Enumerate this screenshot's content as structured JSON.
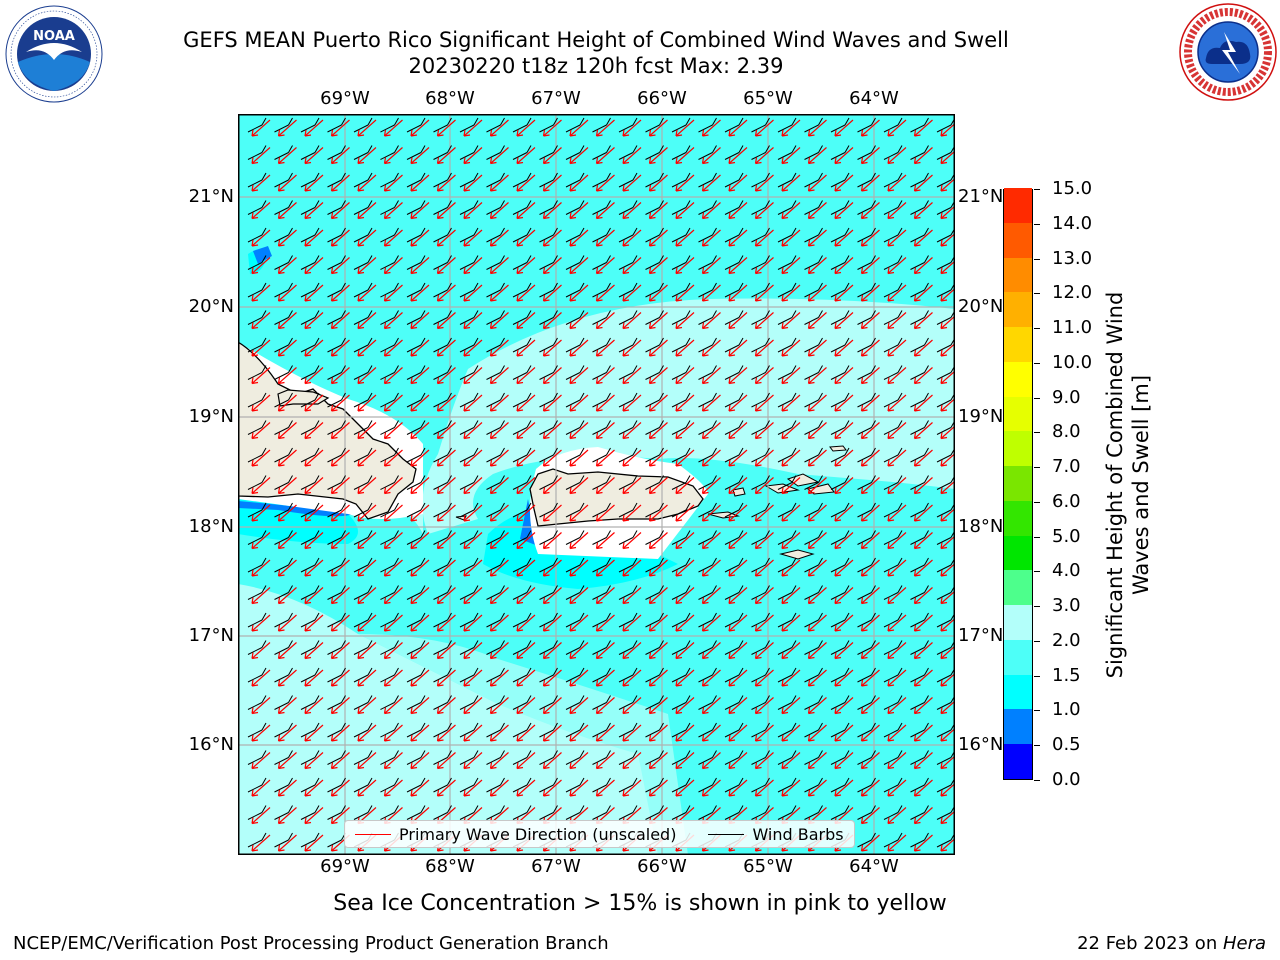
{
  "title_line1": "GEFS MEAN Puerto Rico Significant Height of Combined Wind Waves and Swell",
  "title_line2": "20230220 t18z 120h fcst   Max: 2.39",
  "logos": {
    "left": {
      "icon": "noaa-logo",
      "text": "NOAA",
      "ring_text": "NATIONAL OCEANIC AND ATMOSPHERIC ADMINISTRATION · U.S. DEPARTMENT OF COMMERCE"
    },
    "right": {
      "icon": "nws-logo",
      "ring_text": "NATIONAL WEATHER SERVICE"
    }
  },
  "map": {
    "lon_labels": [
      "69°W",
      "68°W",
      "67°W",
      "66°W",
      "65°W",
      "64°W"
    ],
    "lon_values": [
      -69,
      -68,
      -67,
      -66,
      -65,
      -64
    ],
    "lat_labels": [
      "21°N",
      "20°N",
      "19°N",
      "18°N",
      "17°N",
      "16°N"
    ],
    "lat_values": [
      21,
      20,
      19,
      18,
      17,
      16
    ],
    "lon_range": [
      -70,
      -63.25
    ],
    "lat_range": [
      15.0,
      21.75
    ],
    "colors": {
      "ocean_fill": "#7ffff2",
      "low_wave": "#b3fffa",
      "mid_wave": "#4dfff8",
      "cyan": "#00ffff",
      "blue": "#0080ff",
      "land": "#efede0",
      "coast": "#000000",
      "gridline": "#b0b0b0",
      "wave_arrow": "#ff0000",
      "wind_barb": "#000000"
    }
  },
  "legend": {
    "wave_direction": "Primary Wave Direction (unscaled)",
    "wind_barbs": "Wind Barbs",
    "wave_color": "#ff0000",
    "barb_color": "#000000"
  },
  "colorbar": {
    "label": "Significant Height of Combined Wind Waves and Swell [m]",
    "ticks": [
      "0.0",
      "0.5",
      "1.0",
      "1.5",
      "2.0",
      "3.0",
      "4.0",
      "5.0",
      "6.0",
      "7.0",
      "8.0",
      "9.0",
      "10.0",
      "11.0",
      "12.0",
      "13.0",
      "14.0",
      "15.0"
    ],
    "colors": [
      "#0000ff",
      "#0080ff",
      "#00ffff",
      "#4dfff8",
      "#b3fffa",
      "#4dff8c",
      "#00e600",
      "#33e600",
      "#7ae600",
      "#bfff00",
      "#e6ff00",
      "#ffff00",
      "#ffd700",
      "#ffb000",
      "#ff8c00",
      "#ff5a00",
      "#ff2a00",
      "#ff0000"
    ]
  },
  "subtitle": "Sea Ice Concentration > 15% is shown in pink to yellow",
  "footer": {
    "left": "NCEP/EMC/Verification Post Processing Product Generation Branch",
    "right_prefix": "22 Feb 2023 on ",
    "right_host": "Hera"
  }
}
